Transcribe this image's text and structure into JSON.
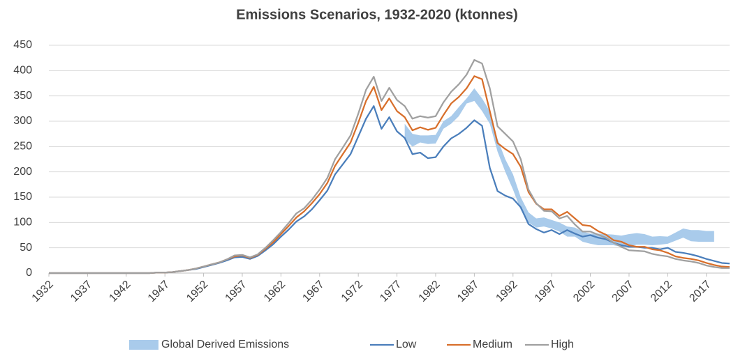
{
  "chart_data": {
    "type": "line",
    "title": "Emissions Scenarios, 1932-2020  (ktonnes)",
    "x": [
      1932,
      1933,
      1934,
      1935,
      1936,
      1937,
      1938,
      1939,
      1940,
      1941,
      1942,
      1943,
      1944,
      1945,
      1946,
      1947,
      1948,
      1949,
      1950,
      1951,
      1952,
      1953,
      1954,
      1955,
      1956,
      1957,
      1958,
      1959,
      1960,
      1961,
      1962,
      1963,
      1964,
      1965,
      1966,
      1967,
      1968,
      1969,
      1970,
      1971,
      1972,
      1973,
      1974,
      1975,
      1976,
      1977,
      1978,
      1979,
      1980,
      1981,
      1982,
      1983,
      1984,
      1985,
      1986,
      1987,
      1988,
      1989,
      1990,
      1991,
      1992,
      1993,
      1994,
      1995,
      1996,
      1997,
      1998,
      1999,
      2000,
      2001,
      2002,
      2003,
      2004,
      2005,
      2006,
      2007,
      2008,
      2009,
      2010,
      2011,
      2012,
      2013,
      2014,
      2015,
      2016,
      2017,
      2018,
      2019,
      2020
    ],
    "xlim": [
      1932,
      2020
    ],
    "xticks": [
      1932,
      1937,
      1942,
      1947,
      1952,
      1957,
      1962,
      1967,
      1972,
      1977,
      1982,
      1987,
      1992,
      1997,
      2002,
      2007,
      2012,
      2017
    ],
    "ylim": [
      0,
      450
    ],
    "yticks": [
      0,
      50,
      100,
      150,
      200,
      250,
      300,
      350,
      400,
      450
    ],
    "grid": true,
    "legend": "bottom",
    "series": [
      {
        "name": "Global Derived Emissions",
        "color": "#a9cbeb",
        "type": "range",
        "values": [
          null,
          null,
          null,
          null,
          null,
          null,
          null,
          null,
          null,
          null,
          null,
          null,
          null,
          null,
          null,
          null,
          null,
          null,
          null,
          null,
          null,
          null,
          null,
          null,
          null,
          null,
          null,
          null,
          null,
          null,
          null,
          null,
          null,
          null,
          null,
          null,
          null,
          null,
          null,
          null,
          null,
          null,
          null,
          null,
          null,
          null,
          295,
          275,
          272,
          272,
          273,
          300,
          310,
          328,
          345,
          365,
          345,
          320,
          265,
          225,
          195,
          150,
          120,
          108,
          110,
          105,
          100,
          92,
          90,
          82,
          78,
          78,
          77,
          76,
          74,
          77,
          79,
          77,
          72,
          73,
          72,
          80,
          88,
          85,
          85,
          83,
          83,
          null,
          null
        ],
        "lower": [
          null,
          null,
          null,
          null,
          null,
          null,
          null,
          null,
          null,
          null,
          null,
          null,
          null,
          null,
          null,
          null,
          null,
          null,
          null,
          null,
          null,
          null,
          null,
          null,
          null,
          null,
          null,
          null,
          null,
          null,
          null,
          null,
          null,
          null,
          null,
          null,
          null,
          null,
          null,
          null,
          null,
          null,
          null,
          null,
          null,
          null,
          265,
          250,
          258,
          255,
          256,
          285,
          295,
          310,
          335,
          340,
          320,
          295,
          240,
          200,
          165,
          125,
          100,
          90,
          92,
          88,
          82,
          72,
          72,
          62,
          58,
          55,
          55,
          55,
          52,
          53,
          56,
          56,
          55,
          56,
          58,
          64,
          70,
          63,
          62,
          62,
          62,
          null,
          null
        ]
      },
      {
        "name": "Low",
        "color": "#4a7ebb",
        "values": [
          0,
          0,
          0,
          0,
          0,
          0,
          0,
          0,
          0,
          0,
          0,
          0,
          0,
          0,
          1,
          1,
          2,
          4,
          6,
          8,
          12,
          16,
          20,
          25,
          31,
          32,
          28,
          34,
          45,
          57,
          72,
          86,
          102,
          112,
          126,
          144,
          163,
          195,
          215,
          235,
          270,
          305,
          330,
          285,
          308,
          280,
          267,
          235,
          238,
          227,
          229,
          250,
          266,
          275,
          287,
          302,
          291,
          208,
          162,
          153,
          147,
          130,
          97,
          87,
          80,
          85,
          77,
          85,
          78,
          72,
          75,
          70,
          67,
          60,
          55,
          52,
          52,
          50,
          50,
          47,
          50,
          42,
          40,
          37,
          33,
          28,
          24,
          20,
          19
        ]
      },
      {
        "name": "Medium",
        "color": "#d86f2b",
        "values": [
          0,
          0,
          0,
          0,
          0,
          0,
          0,
          0,
          0,
          0,
          0,
          0,
          0,
          0,
          1,
          1,
          2,
          4,
          6,
          9,
          13,
          17,
          21,
          27,
          33,
          35,
          30,
          36,
          48,
          61,
          77,
          93,
          110,
          122,
          138,
          156,
          178,
          212,
          235,
          258,
          297,
          340,
          368,
          322,
          345,
          320,
          308,
          282,
          288,
          283,
          287,
          312,
          335,
          348,
          365,
          389,
          383,
          320,
          257,
          245,
          235,
          210,
          160,
          137,
          126,
          126,
          113,
          121,
          108,
          95,
          93,
          83,
          76,
          65,
          62,
          55,
          52,
          52,
          47,
          45,
          40,
          33,
          30,
          28,
          25,
          20,
          16,
          13,
          12
        ]
      },
      {
        "name": "High",
        "color": "#a0a0a0",
        "values": [
          0,
          0,
          0,
          0,
          0,
          0,
          0,
          0,
          0,
          0,
          0,
          0,
          0,
          0,
          1,
          1,
          2,
          4,
          6,
          9,
          13,
          17,
          21,
          27,
          35,
          36,
          31,
          37,
          50,
          65,
          81,
          99,
          118,
          128,
          145,
          165,
          188,
          225,
          248,
          272,
          315,
          362,
          388,
          340,
          366,
          342,
          330,
          305,
          310,
          307,
          310,
          337,
          358,
          373,
          392,
          421,
          414,
          365,
          290,
          275,
          260,
          225,
          165,
          138,
          123,
          122,
          108,
          113,
          96,
          82,
          82,
          76,
          70,
          60,
          52,
          45,
          44,
          43,
          38,
          35,
          33,
          28,
          25,
          23,
          20,
          15,
          12,
          10,
          10
        ]
      }
    ]
  }
}
